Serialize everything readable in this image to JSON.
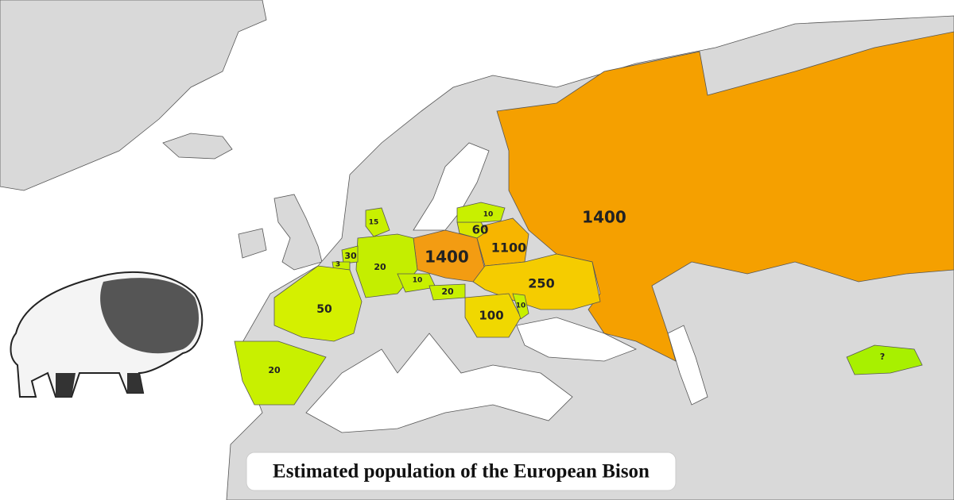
{
  "title": "Estimated population of the European Bison",
  "regions": [
    {
      "value": 1400
    },
    {
      "value": 1400
    },
    {
      "value": 1100
    },
    {
      "value": 250
    },
    {
      "value": 100
    },
    {
      "value": 60
    },
    {
      "value": 10
    },
    {
      "value": 10
    },
    {
      "value": 20
    },
    {
      "value": 15
    },
    {
      "value": 30
    },
    {
      "value": 3
    },
    {
      "value": 10
    },
    {
      "value": 20
    },
    {
      "value": 50
    },
    {
      "value": 20
    },
    {
      "value": "?"
    }
  ]
}
